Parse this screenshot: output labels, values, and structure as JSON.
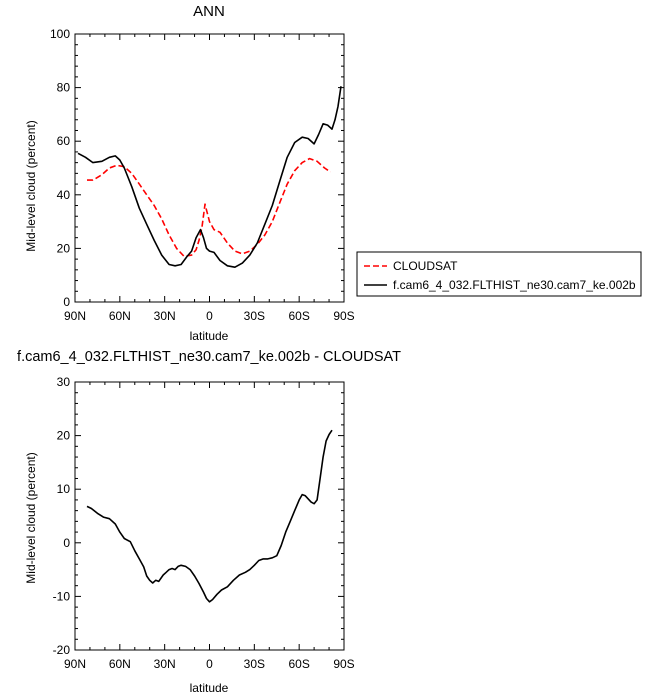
{
  "chart_data": [
    {
      "type": "line",
      "title": "ANN",
      "xlabel": "latitude",
      "ylabel": "Mid-level cloud (percent)",
      "ylim": [
        0,
        100
      ],
      "xlim": [
        90,
        -90
      ],
      "xticks": [
        90,
        60,
        30,
        0,
        -30,
        -60,
        -90
      ],
      "xtick_labels": [
        "90N",
        "60N",
        "30N",
        "0",
        "30S",
        "60S",
        "90S"
      ],
      "yticks": [
        0,
        20,
        40,
        60,
        80,
        100
      ],
      "ytick_labels": [
        "0",
        "20",
        "40",
        "60",
        "80",
        "100"
      ],
      "legend_position": "right-outside",
      "series": [
        {
          "name": "CLOUDSAT",
          "color": "#ff0000",
          "dash": "dashed",
          "x": [
            82,
            78,
            72,
            67,
            62,
            57,
            52,
            47,
            42,
            37,
            32,
            27,
            22,
            17,
            12,
            9,
            7,
            5,
            3,
            0,
            -3,
            -7,
            -12,
            -17,
            -22,
            -27,
            -32,
            -37,
            -42,
            -47,
            -52,
            -57,
            -62,
            -67,
            -72,
            -77,
            -81
          ],
          "y": [
            45.5,
            45.5,
            47.5,
            50,
            51,
            50.5,
            48,
            44,
            40,
            36,
            31,
            25,
            20,
            17,
            17.5,
            19.5,
            23,
            28,
            36.5,
            30,
            27,
            26,
            22,
            19,
            18,
            19,
            21.5,
            25,
            30,
            37,
            44,
            49,
            52,
            53.5,
            52.5,
            50,
            48.5
          ]
        },
        {
          "name": "f.cam6_4_032.FLTHIST_ne30.cam7_ke.002b",
          "color": "#000000",
          "dash": "solid",
          "x": [
            88,
            83,
            78,
            72,
            67,
            63,
            60,
            57,
            52,
            47,
            42,
            37,
            32,
            27,
            23,
            19,
            15,
            12,
            9,
            6,
            4,
            2,
            0,
            -3,
            -7,
            -12,
            -17,
            -22,
            -27,
            -32,
            -37,
            -42,
            -47,
            -52,
            -57,
            -62,
            -66,
            -70,
            -73,
            -76,
            -79,
            -82,
            -84,
            -86,
            -88
          ],
          "y": [
            55.5,
            54,
            52,
            52.5,
            54,
            54.5,
            53,
            50,
            43,
            35,
            29,
            23,
            17.5,
            14,
            13.5,
            14,
            17,
            19,
            24,
            27,
            24,
            20,
            19,
            18.5,
            15.5,
            13.5,
            13,
            14.5,
            17.5,
            22,
            29,
            36,
            45,
            54,
            59.5,
            61.5,
            61,
            59,
            62.5,
            66.5,
            66,
            64.5,
            68,
            73,
            80.5
          ]
        }
      ]
    },
    {
      "type": "line",
      "title": "f.cam6_4_032.FLTHIST_ne30.cam7_ke.002b - CLOUDSAT",
      "xlabel": "latitude",
      "ylabel": "Mid-level cloud (percent)",
      "ylim": [
        -20,
        30
      ],
      "xlim": [
        90,
        -90
      ],
      "xticks": [
        90,
        60,
        30,
        0,
        -30,
        -60,
        -90
      ],
      "xtick_labels": [
        "90N",
        "60N",
        "30N",
        "0",
        "30S",
        "60S",
        "90S"
      ],
      "yticks": [
        -20,
        -10,
        0,
        10,
        20,
        30
      ],
      "ytick_labels": [
        "-20",
        "-10",
        "0",
        "10",
        "20",
        "30"
      ],
      "series": [
        {
          "color": "#000000",
          "dash": "solid",
          "x": [
            82,
            79,
            75,
            71,
            67,
            63,
            60,
            57,
            53,
            50,
            47,
            44,
            42,
            40,
            38,
            36,
            34,
            31,
            29,
            27,
            25,
            23,
            21,
            19,
            16,
            13,
            10,
            7,
            4,
            2,
            0,
            -2,
            -5,
            -8,
            -12,
            -16,
            -20,
            -24,
            -27,
            -30,
            -33,
            -36,
            -39,
            -42,
            -45,
            -48,
            -51,
            -54,
            -57,
            -60,
            -62,
            -64,
            -66,
            -68,
            -70,
            -72,
            -74,
            -76,
            -78,
            -80,
            -82
          ],
          "y": [
            6.8,
            6.4,
            5.5,
            4.8,
            4.5,
            3.5,
            2,
            0.8,
            0.2,
            -1.5,
            -3,
            -4.5,
            -6.2,
            -7,
            -7.5,
            -7,
            -7.2,
            -6,
            -5.5,
            -5,
            -4.8,
            -5,
            -4.4,
            -4.2,
            -4.4,
            -5,
            -6.2,
            -7.6,
            -9.2,
            -10.4,
            -11,
            -10.6,
            -9.6,
            -8.8,
            -8.2,
            -7,
            -6,
            -5.5,
            -5,
            -4.2,
            -3.3,
            -3,
            -3,
            -2.8,
            -2.4,
            -0.5,
            2,
            4,
            6,
            8,
            9,
            8.8,
            8.2,
            7.6,
            7.3,
            8,
            12,
            16,
            19,
            20.2,
            21
          ]
        }
      ]
    }
  ]
}
